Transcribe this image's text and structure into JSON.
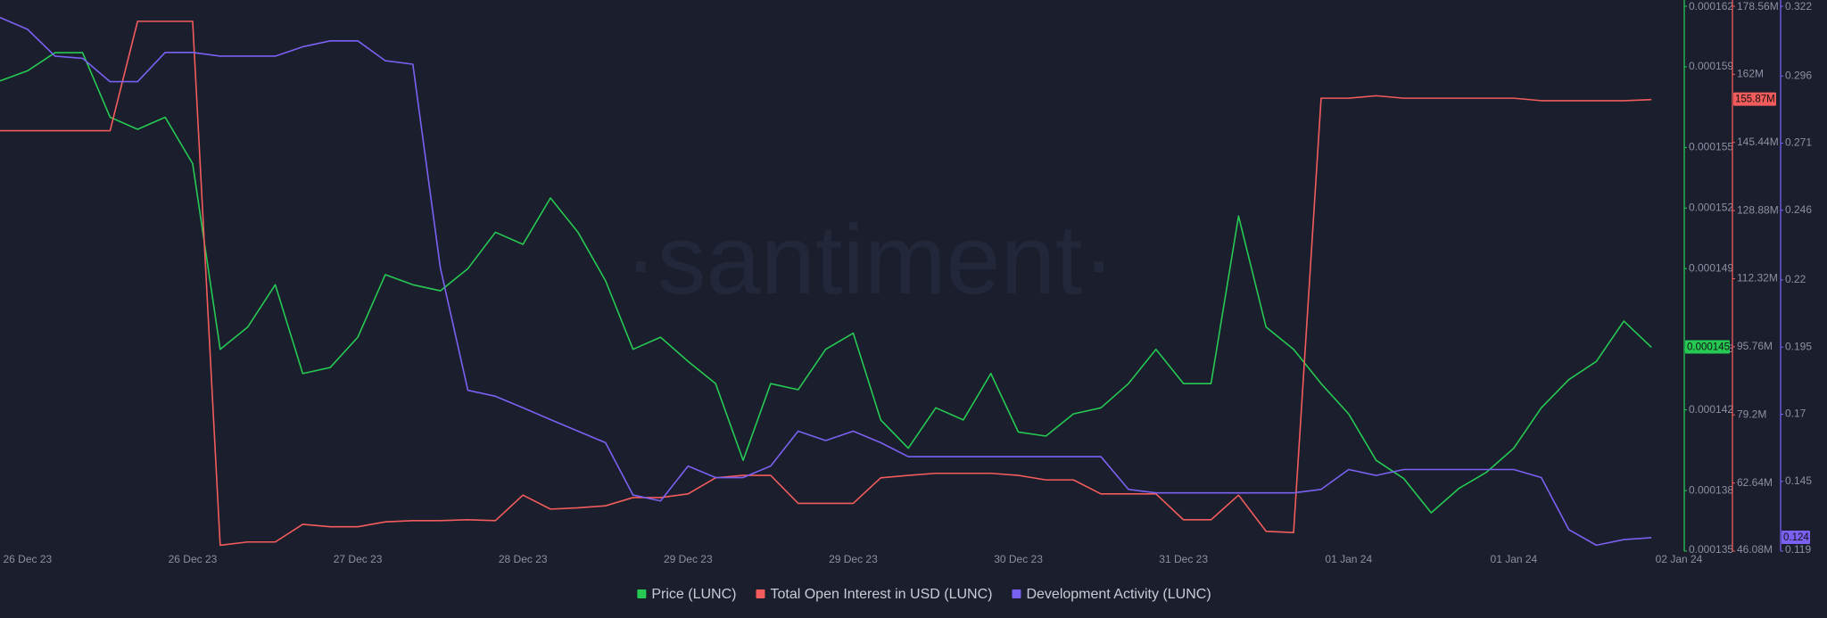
{
  "chart_data": {
    "type": "line",
    "watermark": "·santiment·",
    "categories": [
      null,
      "26 Dec 23",
      null,
      null,
      null,
      null,
      null,
      "26 Dec 23",
      null,
      null,
      null,
      null,
      null,
      "27 Dec 23",
      null,
      null,
      null,
      null,
      null,
      "28 Dec 23",
      null,
      null,
      null,
      null,
      null,
      "29 Dec 23",
      null,
      null,
      null,
      null,
      null,
      "29 Dec 23",
      null,
      null,
      null,
      null,
      null,
      "30 Dec 23",
      null,
      null,
      null,
      null,
      null,
      "31 Dec 23",
      null,
      null,
      null,
      null,
      null,
      "01 Jan 24",
      null,
      null,
      null,
      null,
      null,
      "01 Jan 24",
      null,
      null,
      null,
      null,
      null,
      "02 Jan 24"
    ],
    "ylim": [
      0.000135,
      0.000162
    ],
    "yticks": [
      0.000135,
      0.000138,
      0.000142,
      0.000145,
      0.000149,
      0.000152,
      0.000155,
      0.000159,
      0.000162
    ],
    "y2lim": [
      46080000,
      178560000
    ],
    "y2ticks": [
      {
        "value": 46080000,
        "label": "46.08M"
      },
      {
        "value": 62640000,
        "label": "62.64M"
      },
      {
        "value": 79200000,
        "label": "79.2M"
      },
      {
        "value": 95760000,
        "label": "95.76M"
      },
      {
        "value": 112320000,
        "label": "112.32M"
      },
      {
        "value": 128880000,
        "label": "128.88M"
      },
      {
        "value": 145440000,
        "label": "145.44M"
      },
      {
        "value": 162000000,
        "label": "162M"
      },
      {
        "value": 178560000,
        "label": "178.56M"
      }
    ],
    "y3lim": [
      0.119,
      0.322
    ],
    "y3ticks": [
      0.119,
      0.145,
      0.17,
      0.195,
      0.22,
      0.246,
      0.271,
      0.296,
      0.322
    ],
    "grid": false,
    "legend": "bottom",
    "series": [
      {
        "name": "Price (LUNC)",
        "color": "#26c953",
        "axis": "y",
        "last_label": "0.000145",
        "values": [
          0.0001583,
          0.0001588,
          0.0001597,
          0.0001597,
          0.0001565,
          0.0001559,
          0.0001565,
          0.0001542,
          0.000145,
          0.0001461,
          0.0001482,
          0.0001438,
          0.0001441,
          0.0001456,
          0.0001487,
          0.0001482,
          0.0001479,
          0.000149,
          0.0001508,
          0.0001502,
          0.0001525,
          0.0001508,
          0.0001484,
          0.000145,
          0.0001456,
          0.0001444,
          0.0001433,
          0.0001395,
          0.0001433,
          0.000143,
          0.000145,
          0.0001458,
          0.0001415,
          0.0001401,
          0.0001421,
          0.0001415,
          0.0001438,
          0.0001409,
          0.0001407,
          0.0001418,
          0.0001421,
          0.0001433,
          0.000145,
          0.0001433,
          0.0001433,
          0.0001516,
          0.0001461,
          0.000145,
          0.0001433,
          0.0001418,
          0.0001395,
          0.0001386,
          0.0001369,
          0.0001381,
          0.0001389,
          0.0001401,
          0.0001421,
          0.0001435,
          0.0001444,
          0.0001464,
          0.0001451,
          null
        ]
      },
      {
        "name": "Total Open Interest in USD (LUNC)",
        "color": "#f25c5c",
        "axis": "y2",
        "last_label": "155.87M",
        "values": [
          148300000,
          148300000,
          148300000,
          148300000,
          148300000,
          174900000,
          174900000,
          174900000,
          47500000,
          48300000,
          48300000,
          52600000,
          52000000,
          52000000,
          53200000,
          53500000,
          53500000,
          53700000,
          53500000,
          59700000,
          56300000,
          56600000,
          57100000,
          59100000,
          59100000,
          60000000,
          63900000,
          64500000,
          64500000,
          57700000,
          57700000,
          57700000,
          63900000,
          64500000,
          65000000,
          65000000,
          65000000,
          64500000,
          63400000,
          63400000,
          60000000,
          60000000,
          60000000,
          53700000,
          53700000,
          59700000,
          50900000,
          50600000,
          156200000,
          156200000,
          156800000,
          156200000,
          156200000,
          156200000,
          156200000,
          156200000,
          155600000,
          155600000,
          155600000,
          155600000,
          155870000,
          null
        ]
      },
      {
        "name": "Development Activity (LUNC)",
        "color": "#7b61f2",
        "axis": "y3",
        "last_label": "0.124",
        "values": [
          0.3178,
          0.3134,
          0.3034,
          0.3026,
          0.2939,
          0.2939,
          0.3048,
          0.3048,
          0.3034,
          0.3034,
          0.3034,
          0.3069,
          0.3091,
          0.3091,
          0.3017,
          0.3004,
          0.2245,
          0.1789,
          0.1767,
          0.1724,
          0.168,
          0.1637,
          0.1594,
          0.1399,
          0.1377,
          0.1507,
          0.1464,
          0.1464,
          0.1507,
          0.1637,
          0.1602,
          0.1637,
          0.1594,
          0.1542,
          0.1542,
          0.1542,
          0.1542,
          0.1542,
          0.1542,
          0.1542,
          0.1542,
          0.142,
          0.1407,
          0.1407,
          0.1407,
          0.1407,
          0.1407,
          0.1407,
          0.142,
          0.1494,
          0.1472,
          0.1494,
          0.1494,
          0.1494,
          0.1494,
          0.1494,
          0.1464,
          0.127,
          0.1212,
          0.1233,
          0.124,
          null
        ]
      }
    ]
  }
}
